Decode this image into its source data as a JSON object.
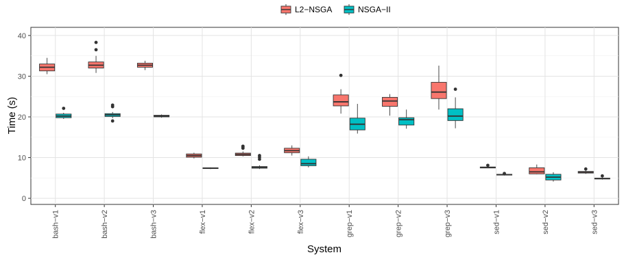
{
  "chart_data": {
    "type": "box",
    "xlabel": "System",
    "ylabel": "Time (s)",
    "ylim": [
      -1.5,
      42
    ],
    "yticks": [
      0,
      10,
      20,
      30,
      40
    ],
    "grid": true,
    "legend_position": "top",
    "categories": [
      "bash−v1",
      "bash−v2",
      "bash−v3",
      "flex−v1",
      "flex−v2",
      "flex−v3",
      "grep−v1",
      "grep−v2",
      "grep−v3",
      "sed−v1",
      "sed−v2",
      "sed−v3"
    ],
    "series": [
      {
        "name": "L2−NSGA",
        "color": "#f8766d",
        "boxes": [
          {
            "min": 30.5,
            "q1": 31.3,
            "median": 32.2,
            "q3": 33.0,
            "max": 34.5,
            "outliers": []
          },
          {
            "min": 30.8,
            "q1": 32.0,
            "median": 32.7,
            "q3": 33.5,
            "max": 35.0,
            "outliers": [
              36.5,
              38.3
            ]
          },
          {
            "min": 31.5,
            "q1": 32.2,
            "median": 32.7,
            "q3": 33.2,
            "max": 33.8,
            "outliers": []
          },
          {
            "min": 9.8,
            "q1": 10.1,
            "median": 10.5,
            "q3": 10.9,
            "max": 11.2,
            "outliers": []
          },
          {
            "min": 10.3,
            "q1": 10.5,
            "median": 10.8,
            "q3": 11.1,
            "max": 11.5,
            "outliers": [
              12.3,
              12.6,
              12.8
            ]
          },
          {
            "min": 10.5,
            "q1": 11.2,
            "median": 11.7,
            "q3": 12.3,
            "max": 13.0,
            "outliers": []
          },
          {
            "min": 20.8,
            "q1": 22.7,
            "median": 23.7,
            "q3": 25.4,
            "max": 26.8,
            "outliers": [
              30.2
            ]
          },
          {
            "min": 20.3,
            "q1": 22.6,
            "median": 23.9,
            "q3": 24.8,
            "max": 25.6,
            "outliers": []
          },
          {
            "min": 21.8,
            "q1": 24.5,
            "median": 26.1,
            "q3": 28.5,
            "max": 32.6,
            "outliers": []
          },
          {
            "min": 7.4,
            "q1": 7.45,
            "median": 7.55,
            "q3": 7.7,
            "max": 7.9,
            "outliers": [
              8.1
            ]
          },
          {
            "min": 5.9,
            "q1": 6.0,
            "median": 6.5,
            "q3": 7.5,
            "max": 8.3,
            "outliers": []
          },
          {
            "min": 6.0,
            "q1": 6.2,
            "median": 6.4,
            "q3": 6.6,
            "max": 6.8,
            "outliers": [
              7.2
            ]
          }
        ]
      },
      {
        "name": "NSGA−II",
        "color": "#00bfc4",
        "boxes": [
          {
            "min": 19.5,
            "q1": 19.8,
            "median": 20.2,
            "q3": 20.7,
            "max": 21.0,
            "outliers": [
              22.1
            ]
          },
          {
            "min": 19.7,
            "q1": 20.1,
            "median": 20.5,
            "q3": 20.8,
            "max": 21.2,
            "outliers": [
              19.0,
              22.5,
              22.9
            ]
          },
          {
            "min": 19.8,
            "q1": 20.0,
            "median": 20.2,
            "q3": 20.4,
            "max": 20.6,
            "outliers": []
          },
          {
            "min": 7.2,
            "q1": 7.3,
            "median": 7.4,
            "q3": 7.5,
            "max": 7.6,
            "outliers": []
          },
          {
            "min": 7.2,
            "q1": 7.4,
            "median": 7.6,
            "q3": 7.8,
            "max": 8.1,
            "outliers": [
              9.6,
              10.1,
              10.5
            ]
          },
          {
            "min": 7.6,
            "q1": 8.0,
            "median": 8.5,
            "q3": 9.6,
            "max": 10.3,
            "outliers": []
          },
          {
            "min": 15.9,
            "q1": 16.8,
            "median": 18.2,
            "q3": 19.7,
            "max": 23.2,
            "outliers": []
          },
          {
            "min": 17.1,
            "q1": 18.0,
            "median": 19.3,
            "q3": 19.8,
            "max": 21.8,
            "outliers": []
          },
          {
            "min": 17.2,
            "q1": 19.1,
            "median": 20.2,
            "q3": 22.0,
            "max": 24.8,
            "outliers": [
              26.8
            ]
          },
          {
            "min": 5.6,
            "q1": 5.7,
            "median": 5.8,
            "q3": 5.9,
            "max": 6.0,
            "outliers": [
              6.1
            ]
          },
          {
            "min": 4.1,
            "q1": 4.5,
            "median": 5.2,
            "q3": 5.9,
            "max": 6.4,
            "outliers": []
          },
          {
            "min": 4.6,
            "q1": 4.75,
            "median": 4.85,
            "q3": 4.95,
            "max": 5.1,
            "outliers": [
              5.5
            ]
          }
        ]
      }
    ]
  }
}
